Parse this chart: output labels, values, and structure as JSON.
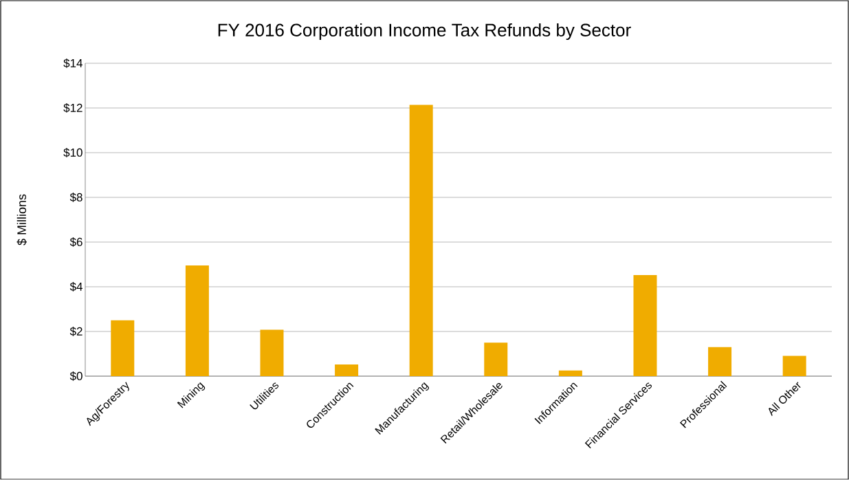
{
  "chart_data": {
    "type": "bar",
    "title": "FY 2016 Corporation Income Tax Refunds by Sector",
    "ylabel": "$ Millions",
    "categories": [
      "Ag/Forestry",
      "Mining",
      "Utilities",
      "Construction",
      "Manufacturing",
      "Retail/Wholesale",
      "Information",
      "Financial Services",
      "Professional",
      "All Other"
    ],
    "values": [
      2.5,
      4.95,
      2.08,
      0.52,
      12.14,
      1.5,
      0.25,
      4.52,
      1.3,
      0.91
    ],
    "color": "#f0ac00",
    "ylim": [
      0,
      14
    ],
    "yticks": [
      {
        "value": 0,
        "label": "$0"
      },
      {
        "value": 2,
        "label": "$2"
      },
      {
        "value": 4,
        "label": "$4"
      },
      {
        "value": 6,
        "label": "$6"
      },
      {
        "value": 8,
        "label": "$8"
      },
      {
        "value": 10,
        "label": "$10"
      },
      {
        "value": 12,
        "label": "$12"
      },
      {
        "value": 14,
        "label": "$14"
      }
    ],
    "grid": "y"
  }
}
